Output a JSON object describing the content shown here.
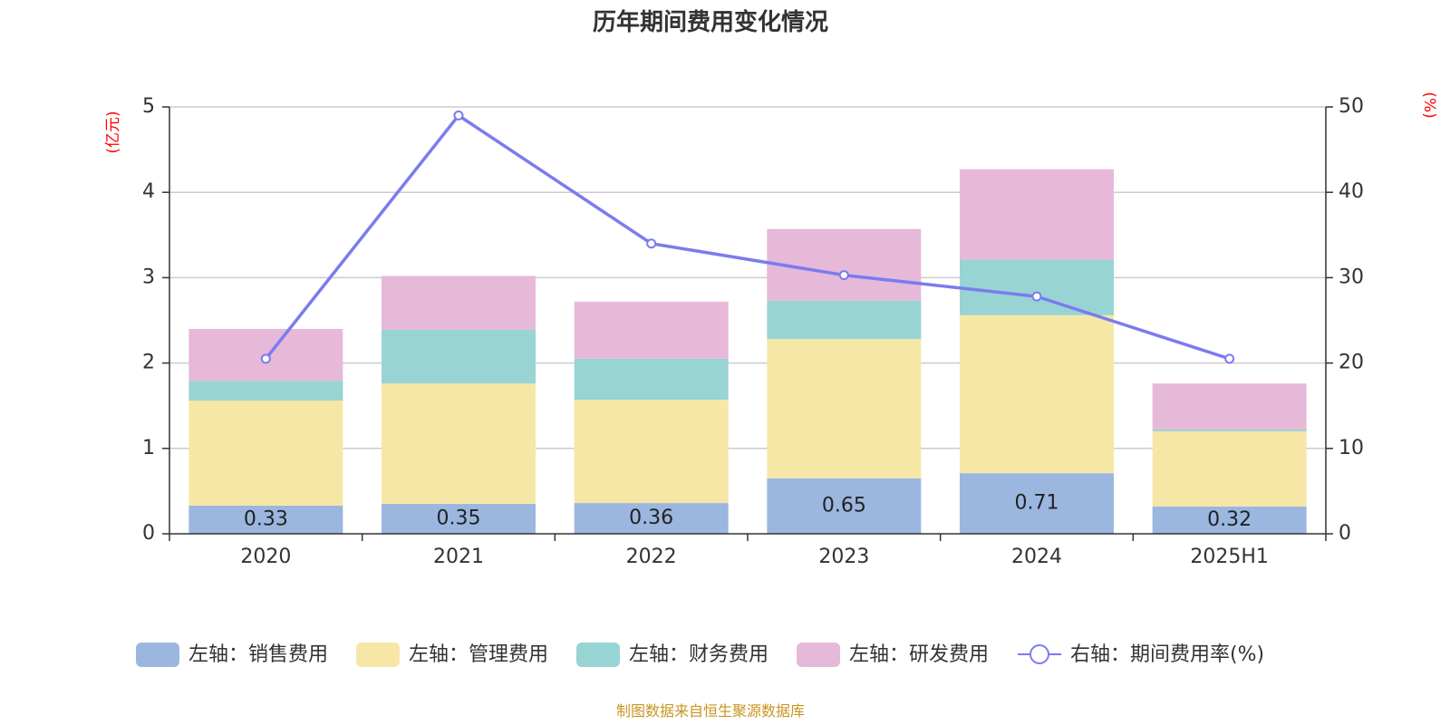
{
  "chart_data": {
    "type": "bar",
    "title": "历年期间费用变化情况",
    "categories": [
      "2020",
      "2021",
      "2022",
      "2023",
      "2024",
      "2025H1"
    ],
    "left_axis": {
      "unit": "(亿元)",
      "ylim": [
        0,
        5
      ],
      "ticks": [
        "0",
        "1",
        "2",
        "3",
        "4",
        "5"
      ]
    },
    "right_axis": {
      "unit": "(%)",
      "ylim": [
        0,
        50
      ],
      "ticks": [
        "0",
        "10",
        "20",
        "30",
        "40",
        "50"
      ]
    },
    "series": [
      {
        "name": "左轴：销售费用",
        "type": "bar",
        "axis": "left",
        "color": "#9bb7e0",
        "values": [
          0.33,
          0.35,
          0.36,
          0.65,
          0.71,
          0.32
        ],
        "labels": [
          "0.33",
          "0.35",
          "0.36",
          "0.65",
          "0.71",
          "0.32"
        ]
      },
      {
        "name": "左轴：管理费用",
        "type": "bar",
        "axis": "left",
        "color": "#f7e7a6",
        "values": [
          1.23,
          1.41,
          1.21,
          1.63,
          1.85,
          0.88
        ]
      },
      {
        "name": "左轴：财务费用",
        "type": "bar",
        "axis": "left",
        "color": "#98d4d4",
        "values": [
          0.23,
          0.63,
          0.48,
          0.45,
          0.65,
          0.02
        ]
      },
      {
        "name": "左轴：研发费用",
        "type": "bar",
        "axis": "left",
        "color": "#e6b9d9",
        "values": [
          0.61,
          0.63,
          0.67,
          0.84,
          1.06,
          0.54
        ]
      },
      {
        "name": "右轴：期间费用率(%)",
        "type": "line",
        "axis": "right",
        "color": "#7b7bef",
        "values": [
          20.5,
          49.0,
          34.0,
          30.3,
          27.8,
          20.5
        ]
      }
    ],
    "grid": true,
    "legend_position": "bottom"
  },
  "footer": {
    "source": "制图数据来自恒生聚源数据库"
  }
}
